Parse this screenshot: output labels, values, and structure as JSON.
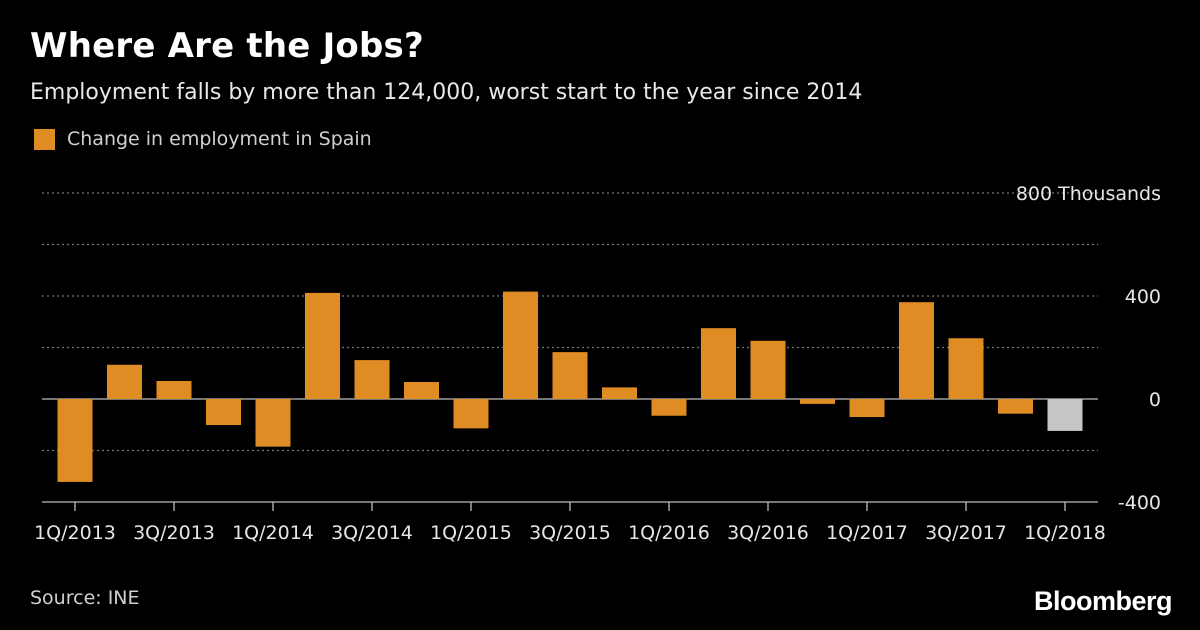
{
  "header": {
    "title": "Where Are the Jobs?",
    "subtitle": "Employment falls by more than 124,000, worst start to the year since 2014"
  },
  "footer": {
    "source": "Source: INE",
    "brand": "Bloomberg"
  },
  "colors": {
    "background": "#000000",
    "bar": "#e08c25",
    "bar_highlight": "#c6c6c6",
    "grid": "#777777",
    "text": "#ffffff"
  },
  "chart_data": {
    "type": "bar",
    "categories": [
      "1Q/2013",
      "2Q/2013",
      "3Q/2013",
      "4Q/2013",
      "1Q/2014",
      "2Q/2014",
      "3Q/2014",
      "4Q/2014",
      "1Q/2015",
      "2Q/2015",
      "3Q/2015",
      "4Q/2015",
      "1Q/2016",
      "2Q/2016",
      "3Q/2016",
      "4Q/2016",
      "1Q/2017",
      "2Q/2017",
      "3Q/2017",
      "4Q/2017",
      "1Q/2018"
    ],
    "tick_labels": [
      "1Q/2013",
      "3Q/2013",
      "1Q/2014",
      "3Q/2014",
      "1Q/2015",
      "3Q/2015",
      "1Q/2016",
      "3Q/2016",
      "1Q/2017",
      "3Q/2017",
      "1Q/2018"
    ],
    "series": [
      {
        "name": "Change in employment in Spain",
        "values": [
          -322,
          133,
          70,
          -101,
          -185,
          412,
          151,
          66,
          -114,
          417,
          182,
          45,
          -65,
          275,
          226,
          -19,
          -70,
          376,
          236,
          -57,
          -124
        ]
      }
    ],
    "highlight_category": "1Q/2018",
    "y_ticks": [
      800,
      400,
      0,
      -400
    ],
    "y_tick_labels": [
      "800 Thousands",
      "400",
      "0",
      "-400"
    ],
    "ylim": [
      -400,
      800
    ],
    "ylabel": "",
    "xlabel": "",
    "grid": true,
    "legend": "top-left"
  }
}
